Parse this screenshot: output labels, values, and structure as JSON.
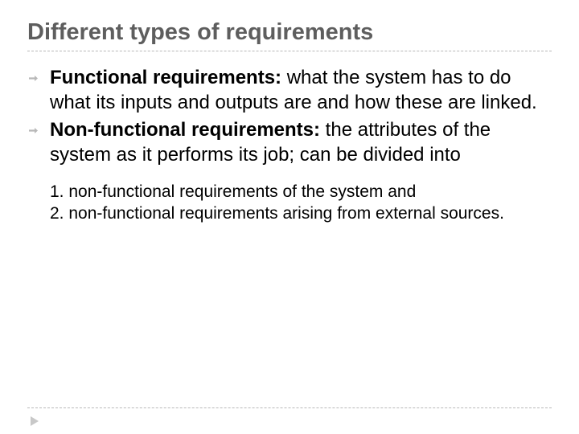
{
  "title": "Different types of requirements",
  "bullets": [
    {
      "lead": "Functional requirements:",
      "rest": " what the system has to do what its inputs and outputs are and how these are linked."
    },
    {
      "lead": "Non-functional requirements:",
      "rest": " the attributes of the system as it performs its job; can be divided into"
    }
  ],
  "numbered": [
    "1. non-functional requirements of the system and",
    "2. non-functional requirements arising from external sources."
  ],
  "style": {
    "title_color": "#5e5e5e",
    "title_fontsize": 29,
    "body_fontsize": 24,
    "numbered_fontsize": 21,
    "divider_color": "#b8b8b8",
    "text_color": "#000000",
    "background": "#ffffff",
    "bullet_color": "#b8b8b8"
  }
}
